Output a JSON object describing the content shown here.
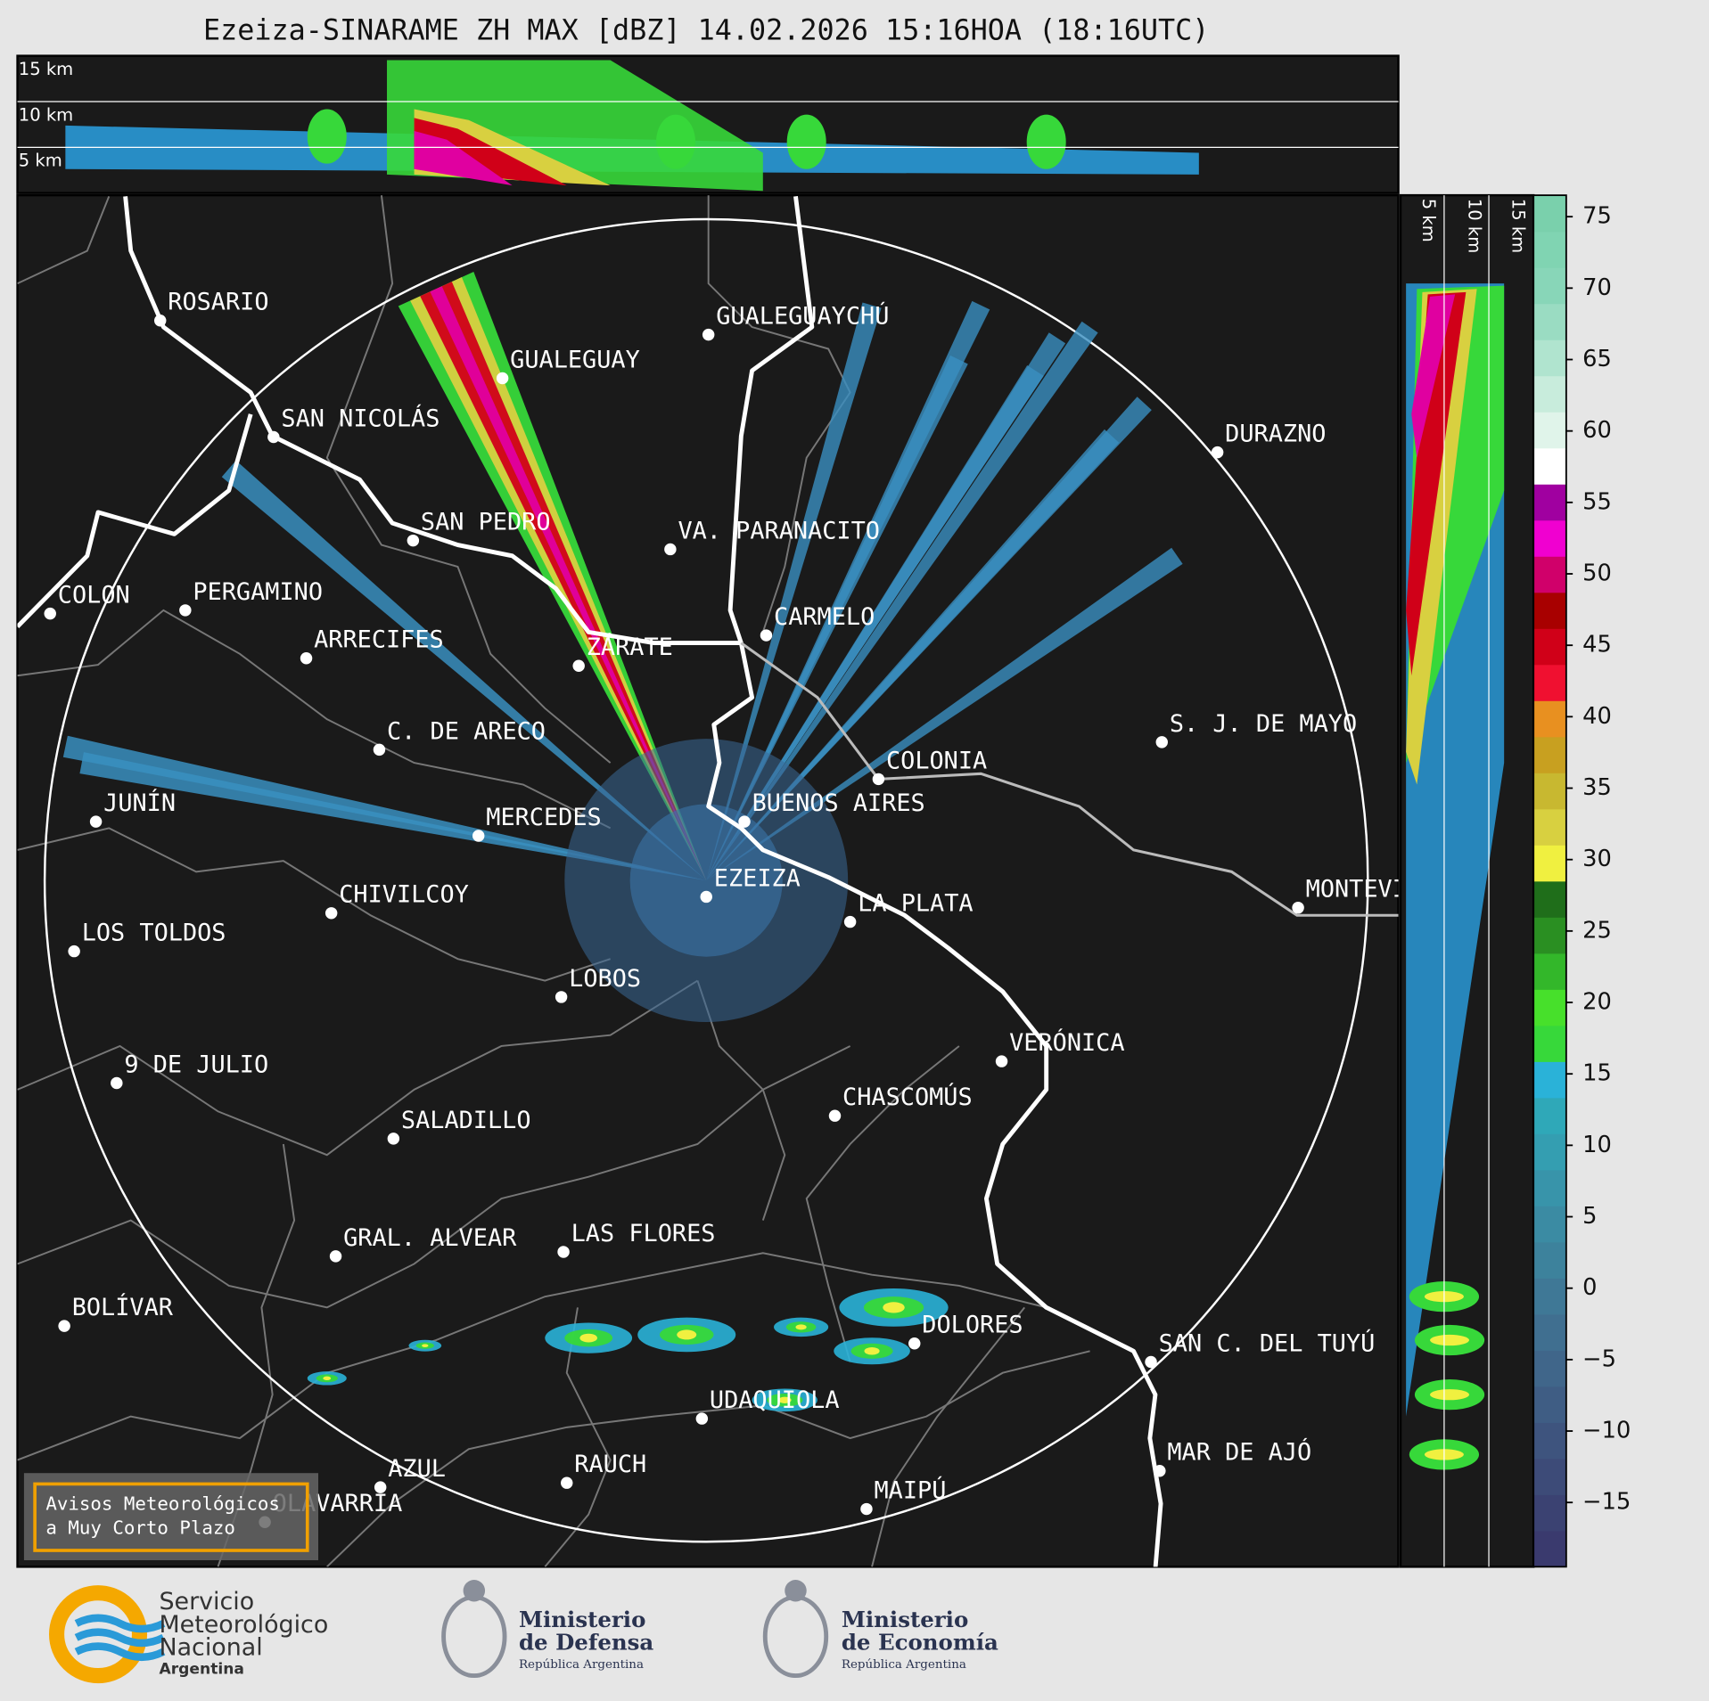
{
  "title": "Ezeiza-SINARAME ZH MAX [dBZ] 14.02.2026 15:16HOA (18:16UTC)",
  "top_panel": {
    "height_labels": [
      "15 km",
      "10 km",
      "5 km"
    ]
  },
  "side_panel": {
    "height_labels": [
      "5 km",
      "10 km",
      "15 km"
    ]
  },
  "colorbar": {
    "range": [
      -19.5,
      76.5
    ],
    "ticks": [
      75,
      70,
      65,
      60,
      55,
      50,
      45,
      40,
      35,
      30,
      25,
      20,
      15,
      10,
      5,
      0,
      {
        "value": -5,
        "label": "−5"
      },
      {
        "value": -10,
        "label": "−10"
      },
      {
        "value": -15,
        "label": "−15"
      }
    ],
    "colors": [
      "#3a3a6e",
      "#3b4272",
      "#3d4b78",
      "#3e547e",
      "#3f5d84",
      "#40668a",
      "#406f90",
      "#3f7896",
      "#3d829c",
      "#3b8ba3",
      "#3894aa",
      "#349eb1",
      "#2fa8b8",
      "#2ab2d8",
      "#37d83a",
      "#47e02b",
      "#33b72a",
      "#2a8f22",
      "#1f6e1a",
      "#f0f040",
      "#d8d040",
      "#c8b830",
      "#c8a020",
      "#e89020",
      "#f01030",
      "#d00018",
      "#a80000",
      "#d0006a",
      "#f000d0",
      "#a000a0",
      "#ffffff",
      "#e0f4ea",
      "#c8ecdc",
      "#b0e4cf",
      "#9adcc2",
      "#88d6b8",
      "#80d4b2",
      "#7ad0ac"
    ]
  },
  "cities": [
    "ROSARIO",
    "GUALEGUAYCHÚ",
    "GUALEGUAY",
    "SAN NICOLÁS",
    "DURAZNO",
    "SAN PEDRO",
    "VA. PARANACITO",
    "COLON",
    "PERGAMINO",
    "CARMELO",
    "ARRECIFES",
    "ZÁRATE",
    "S. J. DE MAYO",
    "C. DE ARECO",
    "COLONIA",
    "BUENOS AIRES",
    "JUNÍN",
    "MERCEDES",
    "EZEIZA",
    "MONTEVIDEO",
    "CHIVILCOY",
    "LA PLATA",
    "LOS TOLDOS",
    "LOBOS",
    "VERÓNICA",
    "9 DE JULIO",
    "CHASCOMÚS",
    "SALADILLO",
    "GRAL. ALVEAR",
    "LAS FLORES",
    "BOLÍVAR",
    "DOLORES",
    "SAN C. DEL TUYÚ",
    "UDAQUIOLA",
    "MAR DE AJÓ",
    "AZUL",
    "RAUCH",
    "OLAVARRÍA",
    "MAIPÚ"
  ],
  "warning_box": {
    "lines": [
      "Avisos Meteorológicos",
      "a Muy Corto Plazo"
    ]
  },
  "footer": {
    "smn": {
      "lines": [
        "Servicio",
        "Meteorológico",
        "Nacional"
      ],
      "country": "Argentina"
    },
    "defensa": {
      "lines": [
        "Ministerio",
        "de Defensa"
      ],
      "country": "República Argentina"
    },
    "economia": {
      "lines": [
        "Ministerio",
        "de Economía"
      ],
      "country": "República Argentina"
    }
  }
}
